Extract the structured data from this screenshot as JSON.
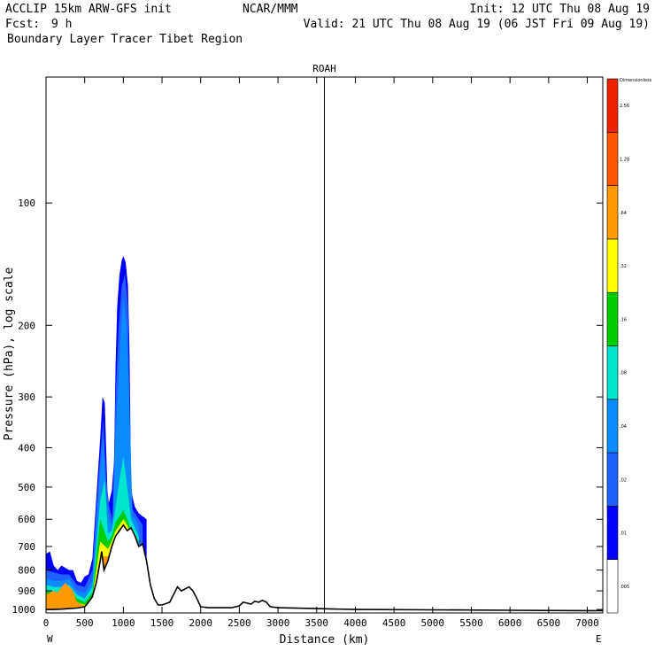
{
  "header": {
    "model": "ACCLIP 15km ARW-GFS init",
    "center": "NCAR/MMM",
    "init": "Init: 12 UTC Thu 08 Aug 19",
    "fcst_label": "Fcst:",
    "fcst_value": "9 h",
    "valid": "Valid: 21 UTC Thu 08 Aug 19 (06 JST Fri 09 Aug 19)",
    "title": "Boundary Layer Tracer  Tibet Region"
  },
  "chart_data": {
    "type": "heatmap",
    "title": "Boundary Layer Tracer  Tibet Region",
    "subtitle": "ROAH",
    "xlabel": "Distance (km)",
    "ylabel": "Pressure (hPa), log scale",
    "xlim": [
      0,
      7200
    ],
    "ylim": [
      1020,
      49
    ],
    "y_scale": "log",
    "x_ticks": [
      0,
      500,
      1000,
      1500,
      2000,
      2500,
      3000,
      3500,
      4000,
      4500,
      5000,
      5500,
      6000,
      6500,
      7000
    ],
    "y_ticks": [
      100,
      200,
      300,
      400,
      500,
      600,
      700,
      800,
      900,
      1000
    ],
    "x_end_labels": {
      "left": "W",
      "right": "E"
    },
    "marker_line_km": 3600,
    "colorbar": {
      "title": "Dimensionless",
      "levels": [
        ".005",
        ".01",
        ".02",
        ".04",
        ".08",
        ".16",
        ".32",
        ".64",
        "1.28",
        "2.56"
      ],
      "colors": [
        "#ffffff",
        "#0000ff",
        "#2060ff",
        "#0a8cff",
        "#00e6cc",
        "#00cc00",
        "#ffff00",
        "#ff9900",
        "#ff5500",
        "#ee2200"
      ]
    },
    "terrain_profile": {
      "x": [
        0,
        100,
        200,
        300,
        400,
        500,
        550,
        600,
        650,
        700,
        720,
        750,
        800,
        850,
        900,
        950,
        1000,
        1050,
        1100,
        1150,
        1200,
        1250,
        1300,
        1350,
        1400,
        1450,
        1500,
        1600,
        1700,
        1750,
        1800,
        1850,
        1900,
        1950,
        2000,
        2100,
        2400,
        2500,
        2550,
        2650,
        2700,
        2750,
        2800,
        2850,
        2900,
        3000,
        3500,
        4000,
        5000,
        6000,
        7000,
        7200
      ],
      "y": [
        1000,
        1000,
        998,
        995,
        992,
        985,
        960,
        930,
        860,
        760,
        720,
        800,
        760,
        700,
        660,
        640,
        620,
        640,
        630,
        660,
        700,
        690,
        760,
        870,
        940,
        975,
        975,
        960,
        880,
        900,
        890,
        880,
        900,
        940,
        985,
        990,
        990,
        980,
        960,
        970,
        955,
        960,
        950,
        960,
        985,
        990,
        995,
        1000,
        1002,
        1005,
        1007,
        1007
      ]
    },
    "tracer_areas": [
      {
        "level": ".01",
        "color": "#0000ff",
        "x": [
          0,
          50,
          100,
          150,
          200,
          250,
          300,
          350,
          400,
          450,
          500,
          550,
          600,
          650,
          700,
          730,
          760,
          800,
          850,
          880,
          900,
          920,
          950,
          980,
          1000,
          1030,
          1060,
          1080,
          1100,
          1120,
          1150,
          1200,
          1250,
          1300
        ],
        "y": [
          730,
          720,
          780,
          800,
          780,
          790,
          800,
          800,
          850,
          860,
          830,
          820,
          750,
          530,
          380,
          300,
          310,
          560,
          510,
          430,
          250,
          180,
          150,
          138,
          135,
          140,
          160,
          230,
          500,
          530,
          560,
          580,
          590,
          600
        ]
      },
      {
        "level": ".02",
        "color": "#2060ff",
        "x": [
          0,
          100,
          200,
          300,
          400,
          500,
          600,
          650,
          700,
          740,
          780,
          820,
          860,
          900,
          940,
          980,
          1020,
          1060,
          1100,
          1150,
          1200,
          1250
        ],
        "y": [
          800,
          810,
          820,
          820,
          870,
          880,
          800,
          560,
          420,
          340,
          480,
          560,
          600,
          300,
          200,
          160,
          150,
          180,
          560,
          580,
          600,
          620
        ]
      },
      {
        "level": ".04",
        "color": "#0a8cff",
        "x": [
          0,
          100,
          200,
          300,
          400,
          500,
          600,
          650,
          700,
          740,
          780,
          820,
          860,
          900,
          960,
          1000,
          1040,
          1080,
          1120,
          1160,
          1200
        ],
        "y": [
          840,
          850,
          850,
          840,
          900,
          910,
          850,
          640,
          460,
          380,
          530,
          600,
          620,
          380,
          220,
          170,
          200,
          320,
          590,
          600,
          630
        ]
      },
      {
        "level": ".08",
        "color": "#00e6cc",
        "x": [
          0,
          100,
          200,
          300,
          400,
          500,
          600,
          700,
          760,
          800,
          850,
          900,
          950,
          1000,
          1050,
          1100,
          1150,
          1200
        ],
        "y": [
          870,
          880,
          880,
          870,
          920,
          940,
          880,
          540,
          480,
          650,
          640,
          560,
          480,
          420,
          500,
          600,
          630,
          660
        ]
      },
      {
        "level": ".16",
        "color": "#00cc00",
        "x": [
          0,
          100,
          200,
          300,
          400,
          500,
          600,
          700,
          800,
          850,
          900,
          950,
          1000,
          1050,
          1100,
          1150,
          1200
        ],
        "y": [
          900,
          910,
          900,
          890,
          940,
          960,
          910,
          600,
          680,
          660,
          610,
          590,
          570,
          600,
          640,
          660,
          680
        ]
      },
      {
        "level": ".32",
        "color": "#ffff00",
        "x": [
          0,
          100,
          200,
          300,
          400,
          500,
          600,
          700,
          800,
          850,
          900,
          950,
          1000,
          1050,
          1100,
          1150,
          1200
        ],
        "y": [
          930,
          930,
          920,
          910,
          960,
          975,
          940,
          680,
          710,
          680,
          640,
          620,
          600,
          620,
          660,
          680,
          700
        ]
      },
      {
        "level": ".64",
        "color": "#ff9900",
        "x": [
          0,
          100,
          150,
          200,
          250,
          300,
          350,
          400,
          500,
          600,
          700,
          800,
          850,
          900,
          950,
          1000,
          1050,
          1100,
          1150
        ],
        "y": [
          920,
          900,
          910,
          880,
          860,
          880,
          900,
          960,
          980,
          960,
          740,
          740,
          700,
          660,
          640,
          620,
          640,
          660,
          690
        ]
      }
    ]
  }
}
